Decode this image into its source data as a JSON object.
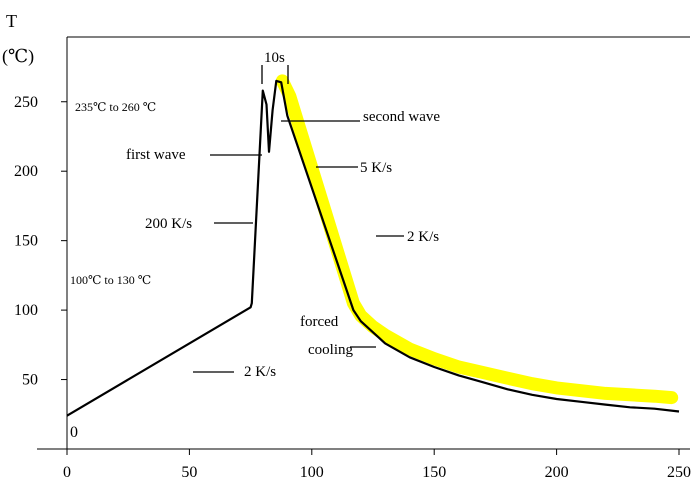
{
  "chart_data": {
    "type": "line",
    "title": "",
    "ylabel": "T",
    "yunit": "(℃)",
    "xlabel": "",
    "xlim": [
      0,
      250
    ],
    "ylim": [
      0,
      260
    ],
    "x_ticks": [
      "0",
      "50",
      "100",
      "150",
      "200",
      "250"
    ],
    "y_ticks": [
      "50",
      "100",
      "150",
      "200",
      "250"
    ],
    "y_zero_label": "0",
    "grid": false,
    "legend": "none",
    "colors": {
      "profile": "#000000",
      "band": "#ffff00",
      "axis": "#000000"
    },
    "series": [
      {
        "points": [
          [
            0,
            24
          ],
          [
            75,
            102
          ],
          [
            75.5,
            105
          ],
          [
            80,
            258
          ],
          [
            81.5,
            248
          ],
          [
            82.5,
            214
          ],
          [
            84,
            244
          ],
          [
            85.5,
            265
          ],
          [
            87.5,
            264
          ],
          [
            90,
            240
          ],
          [
            117,
            100
          ],
          [
            120,
            92
          ],
          [
            125,
            84
          ],
          [
            130,
            76
          ],
          [
            140,
            66
          ],
          [
            150,
            59
          ],
          [
            160,
            53
          ],
          [
            170,
            48
          ],
          [
            180,
            43
          ],
          [
            190,
            39
          ],
          [
            200,
            36
          ],
          [
            210,
            34
          ],
          [
            220,
            32
          ],
          [
            230,
            30
          ],
          [
            240,
            29
          ],
          [
            250,
            27
          ]
        ]
      },
      {
        "points": [
          [
            88,
            265
          ],
          [
            91,
            254
          ],
          [
            117,
            105
          ],
          [
            120,
            96
          ],
          [
            125,
            88
          ],
          [
            130,
            82
          ],
          [
            140,
            72
          ],
          [
            150,
            65
          ],
          [
            160,
            59
          ],
          [
            170,
            55
          ],
          [
            180,
            51
          ],
          [
            190,
            47
          ],
          [
            200,
            44
          ],
          [
            210,
            42
          ],
          [
            220,
            40
          ],
          [
            230,
            39
          ],
          [
            240,
            38
          ],
          [
            247,
            37
          ]
        ]
      }
    ],
    "annotations": {
      "peak_range": "235℃  to 260  ℃",
      "preheat_range": "100℃    to 130  ℃",
      "dwell": "10s",
      "first_wave": "first wave",
      "second_wave": "second wave",
      "rate_5": "5 K/s",
      "rate_2_upper": "2 K/s",
      "rate_200": "200 K/s",
      "rate_2_lower": "2 K/s",
      "forced": "forced",
      "cooling": "cooling"
    }
  }
}
